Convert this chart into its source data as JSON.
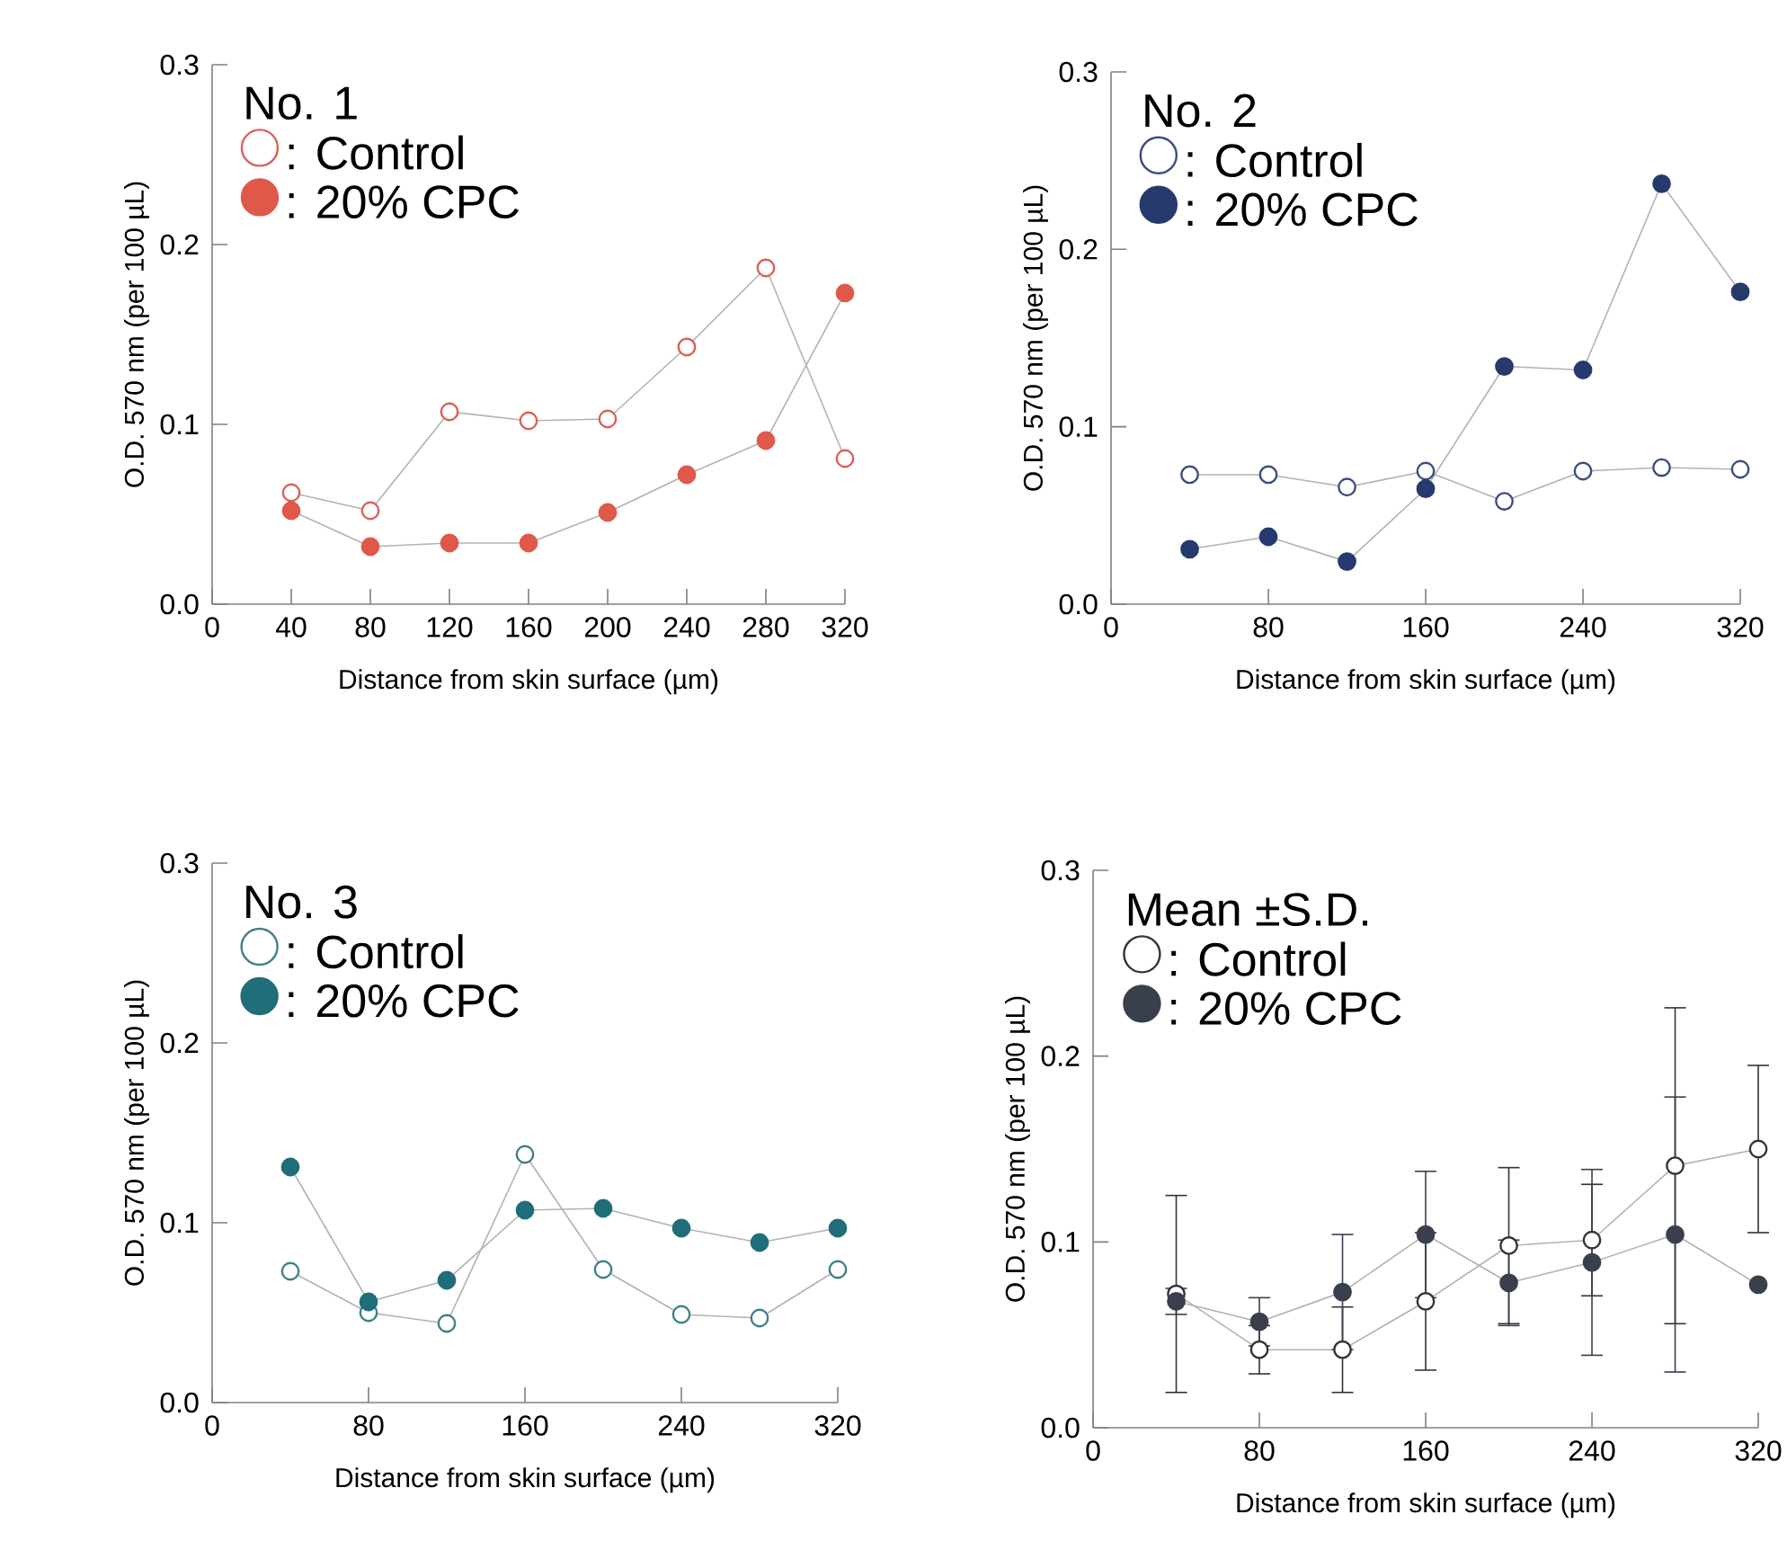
{
  "chart_data": [
    {
      "type": "line",
      "legend_title": "No. 1",
      "xlabel": "Distance from skin surface (µm)",
      "ylabel": "O.D. 570 nm (per 100 µL)",
      "x": [
        40,
        80,
        120,
        160,
        200,
        240,
        280,
        320
      ],
      "xlim": [
        0,
        320
      ],
      "xticks": [
        0,
        40,
        80,
        120,
        160,
        200,
        240,
        280,
        320
      ],
      "ylim": [
        0,
        0.3
      ],
      "yticks": [
        {
          "value": 0,
          "label": "0.0"
        },
        {
          "value": 0.1,
          "label": "0.1"
        },
        {
          "value": 0.2,
          "label": "0.2"
        },
        {
          "value": 0.3,
          "label": "0.3"
        }
      ],
      "marker": "circle",
      "legend": "top left",
      "series": [
        {
          "name": ": Control",
          "color": "#d9605a",
          "values": [
            0.062,
            0.052,
            0.107,
            0.102,
            0.103,
            0.143,
            0.187,
            0.081
          ]
        },
        {
          "name": ": 20% CPC",
          "color": "#e0584a",
          "values": [
            0.052,
            0.032,
            0.034,
            0.034,
            0.051,
            0.072,
            0.091,
            0.173
          ]
        }
      ]
    },
    {
      "type": "line",
      "legend_title": "No. 2",
      "xlabel": "Distance from skin surface (µm)",
      "ylabel": "O.D. 570 nm (per 100 µL)",
      "x": [
        40,
        80,
        120,
        160,
        200,
        240,
        280,
        320
      ],
      "xlim": [
        0,
        320
      ],
      "xticks": [
        0,
        80,
        160,
        240,
        320
      ],
      "ylim": [
        0,
        0.3
      ],
      "yticks": [
        {
          "value": 0,
          "label": "0.0"
        },
        {
          "value": 0.1,
          "label": "0.1"
        },
        {
          "value": 0.2,
          "label": "0.2"
        },
        {
          "value": 0.3,
          "label": "0.3"
        }
      ],
      "marker": "circle",
      "legend": "top left",
      "series": [
        {
          "name": ": Control",
          "color": "#3b4d7d",
          "values": [
            0.073,
            0.073,
            0.066,
            0.075,
            0.058,
            0.075,
            0.077,
            0.076
          ]
        },
        {
          "name": ": 20% CPC",
          "color": "#263a6e",
          "values": [
            0.031,
            0.038,
            0.024,
            0.065,
            0.134,
            0.132,
            0.237,
            0.176
          ]
        }
      ]
    },
    {
      "type": "line",
      "legend_title": "No. 3",
      "xlabel": "Distance from skin surface (µm)",
      "ylabel": "O.D. 570 nm (per 100 µL)",
      "x": [
        40,
        80,
        120,
        160,
        200,
        240,
        280,
        320
      ],
      "xlim": [
        0,
        320
      ],
      "xticks": [
        0,
        80,
        160,
        240,
        320
      ],
      "ylim": [
        0,
        0.3
      ],
      "yticks": [
        {
          "value": 0,
          "label": "0.0"
        },
        {
          "value": 0.1,
          "label": "0.1"
        },
        {
          "value": 0.2,
          "label": "0.2"
        },
        {
          "value": 0.3,
          "label": "0.3"
        }
      ],
      "marker": "circle",
      "legend": "top left",
      "series": [
        {
          "name": ": Control",
          "color": "#3f8088",
          "values": [
            0.073,
            0.05,
            0.044,
            0.138,
            0.074,
            0.049,
            0.047,
            0.074
          ]
        },
        {
          "name": ": 20% CPC",
          "color": "#1f6e7a",
          "values": [
            0.131,
            0.056,
            0.068,
            0.107,
            0.108,
            0.097,
            0.089,
            0.097
          ]
        }
      ]
    },
    {
      "type": "line",
      "legend_title": "Mean ±S.D.",
      "xlabel": "Distance from skin surface (µm)",
      "ylabel": "O.D. 570 nm (per 100 µL)",
      "x": [
        40,
        80,
        120,
        160,
        200,
        240,
        280,
        320
      ],
      "xlim": [
        0,
        320
      ],
      "xticks": [
        0,
        80,
        160,
        240,
        320
      ],
      "ylim": [
        0,
        0.3
      ],
      "yticks": [
        {
          "value": 0,
          "label": "0.0"
        },
        {
          "value": 0.1,
          "label": "0.1"
        },
        {
          "value": 0.2,
          "label": "0.2"
        },
        {
          "value": 0.3,
          "label": "0.3"
        }
      ],
      "marker": "circle",
      "legend": "top left",
      "series": [
        {
          "name": ": Control",
          "color": "#333333",
          "values": [
            0.072,
            0.042,
            0.042,
            0.068,
            0.098,
            0.101,
            0.141,
            0.15
          ],
          "errors": [
            0.053,
            0.013,
            0.023,
            0.037,
            0.042,
            0.03,
            0.085,
            0.045
          ]
        },
        {
          "name": ": 20% CPC",
          "color": "#3a3f4e",
          "values": [
            0.068,
            0.057,
            0.073,
            0.104,
            0.078,
            0.089,
            0.104,
            0.077
          ],
          "errors": [
            0.007,
            0.013,
            0.031,
            0.034,
            0.023,
            0.05,
            0.074,
            null
          ]
        }
      ]
    }
  ]
}
